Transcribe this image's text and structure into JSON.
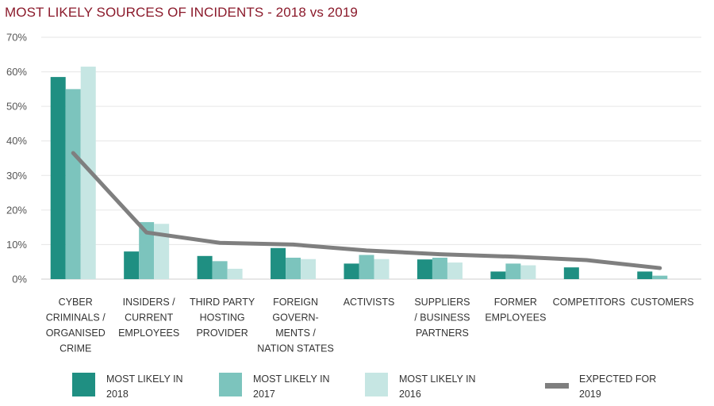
{
  "chart_data": {
    "type": "bar",
    "title": "MOST LIKELY SOURCES OF INCIDENTS - 2018 vs 2019",
    "xlabel": "",
    "ylabel": "",
    "ylim": [
      0,
      70
    ],
    "yticks": [
      "0%",
      "10%",
      "20%",
      "30%",
      "40%",
      "50%",
      "60%",
      "70%"
    ],
    "grid": true,
    "legend_position": "bottom",
    "categories": [
      [
        "CYBER",
        "CRIMINALS /",
        "ORGANISED",
        "CRIME"
      ],
      [
        "INSIDERS /",
        "CURRENT",
        "EMPLOYEES"
      ],
      [
        "THIRD PARTY",
        "HOSTING",
        "PROVIDER"
      ],
      [
        "FOREIGN",
        "GOVERN-",
        "MENTS /",
        "NATION STATES"
      ],
      [
        "ACTIVISTS"
      ],
      [
        "SUPPLIERS",
        "/ BUSINESS",
        "PARTNERS"
      ],
      [
        "FORMER",
        "EMPLOYEES"
      ],
      [
        "COMPETITORS"
      ],
      [
        "CUSTOMERS"
      ]
    ],
    "series": [
      {
        "name": [
          "MOST LIKELY IN",
          "2018"
        ],
        "kind": "bar",
        "color": "#1f8f82",
        "values": [
          58.5,
          8,
          6.7,
          9,
          4.5,
          5.7,
          2.2,
          3.4,
          2.2
        ]
      },
      {
        "name": [
          "MOST LIKELY IN",
          "2017"
        ],
        "kind": "bar",
        "color": "#7cc4bd",
        "values": [
          55,
          16.5,
          5.2,
          6.2,
          7,
          6.2,
          4.5,
          null,
          1
        ]
      },
      {
        "name": [
          "MOST LIKELY IN",
          "2016"
        ],
        "kind": "bar",
        "color": "#c6e6e3",
        "values": [
          61.5,
          16,
          3,
          5.8,
          5.8,
          4.8,
          4,
          null,
          null
        ]
      },
      {
        "name": [
          "EXPECTED FOR",
          "2019"
        ],
        "kind": "line",
        "color": "#7f7f7f",
        "values": [
          36.5,
          13.5,
          10.5,
          10,
          8.3,
          7.2,
          6.5,
          5.5,
          3.2
        ]
      }
    ]
  }
}
